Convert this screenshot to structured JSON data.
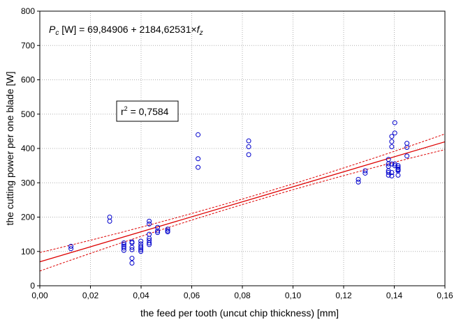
{
  "chart_data": {
    "type": "scatter",
    "xlabel": "the feed per tooth (uncut chip thickness) [mm]",
    "ylabel": "the cutting power per one blade [W]",
    "xlim": [
      0.0,
      0.16
    ],
    "ylim": [
      0,
      800
    ],
    "x_ticks": [
      "0,00",
      "0,02",
      "0,04",
      "0,06",
      "0,08",
      "0,10",
      "0,12",
      "0,14",
      "0,16"
    ],
    "x_tick_values": [
      0.0,
      0.02,
      0.04,
      0.06,
      0.08,
      0.1,
      0.12,
      0.14,
      0.16
    ],
    "y_ticks": [
      "0",
      "100",
      "200",
      "300",
      "400",
      "500",
      "600",
      "700",
      "800"
    ],
    "y_tick_values": [
      0,
      100,
      200,
      300,
      400,
      500,
      600,
      700,
      800
    ],
    "grid": true,
    "colors": {
      "points": "#0000cc",
      "fit": "#dd0000",
      "grid": "#b0b0b0"
    },
    "annotations": {
      "equation_prefix": "P",
      "equation_sub": "c",
      "equation_body": " [W] = 69,84906 + 2184,62531×",
      "equation_var": "f",
      "equation_var_sub": "z",
      "r2_prefix": "r",
      "r2_sup": "2",
      "r2_body": " = 0,7584"
    },
    "fit": {
      "intercept": 69.84906,
      "slope": 2184.62531,
      "ci_half_width_at_ends": 27,
      "ci_half_width_at_mean": 8,
      "x_mean": 0.085
    },
    "points": {
      "x": [
        0.0123,
        0.0123,
        0.0276,
        0.0276,
        0.0332,
        0.0332,
        0.0332,
        0.0332,
        0.0332,
        0.0364,
        0.0364,
        0.0364,
        0.0364,
        0.0364,
        0.0364,
        0.0399,
        0.0399,
        0.0399,
        0.0399,
        0.0399,
        0.0399,
        0.0432,
        0.0432,
        0.0432,
        0.0432,
        0.0432,
        0.0432,
        0.0432,
        0.0465,
        0.0465,
        0.0465,
        0.0505,
        0.0505,
        0.0505,
        0.0625,
        0.0625,
        0.0625,
        0.0825,
        0.0825,
        0.0825,
        0.1258,
        0.1258,
        0.1285,
        0.1285,
        0.1377,
        0.1377,
        0.1377,
        0.1377,
        0.1377,
        0.1377,
        0.139,
        0.139,
        0.139,
        0.139,
        0.139,
        0.139,
        0.1402,
        0.1402,
        0.1402,
        0.1402,
        0.1415,
        0.1415,
        0.1415,
        0.1415,
        0.1415,
        0.1415,
        0.145,
        0.145,
        0.145
      ],
      "y": [
        115,
        108,
        200,
        188,
        125,
        120,
        115,
        110,
        103,
        128,
        125,
        112,
        105,
        80,
        66,
        130,
        122,
        115,
        110,
        105,
        100,
        188,
        180,
        150,
        138,
        132,
        125,
        120,
        170,
        160,
        155,
        165,
        160,
        157,
        440,
        370,
        345,
        422,
        405,
        382,
        310,
        302,
        335,
        328,
        368,
        355,
        348,
        335,
        330,
        322,
        435,
        420,
        405,
        355,
        330,
        320,
        475,
        445,
        355,
        350,
        350,
        345,
        340,
        338,
        335,
        322,
        415,
        403,
        378
      ]
    }
  }
}
